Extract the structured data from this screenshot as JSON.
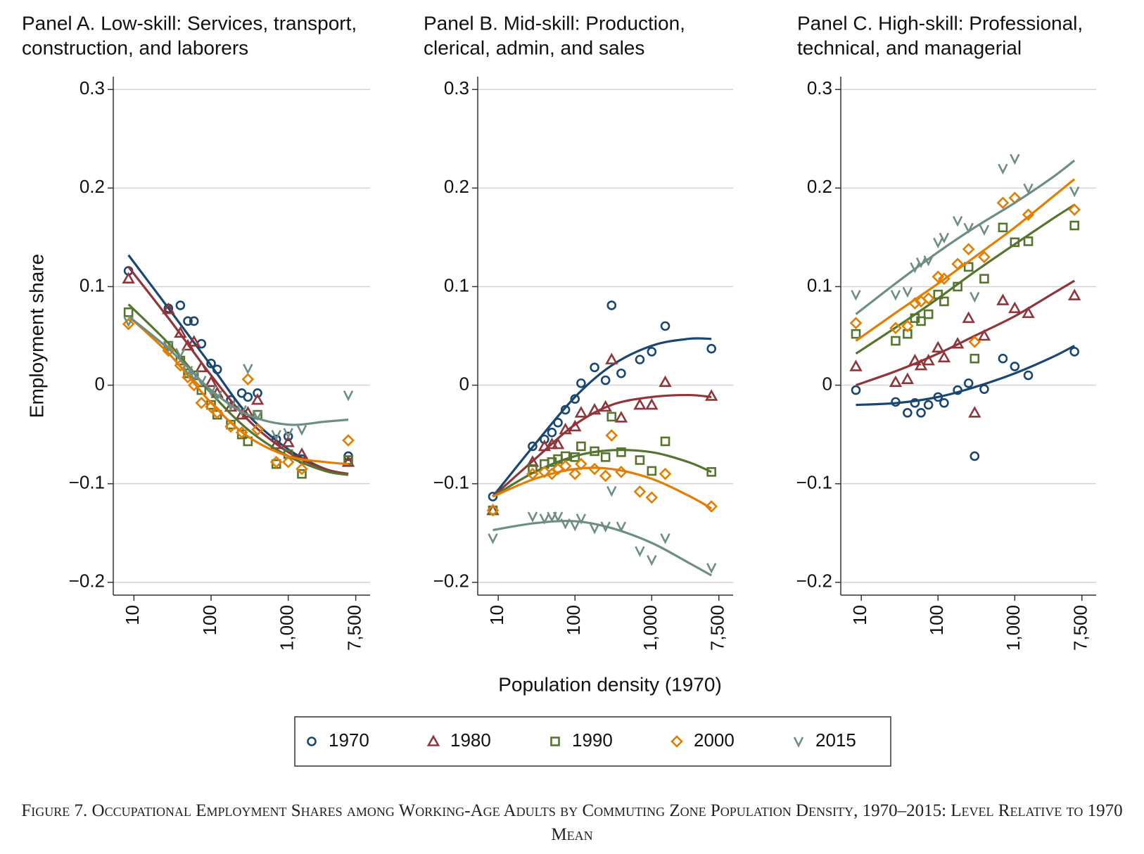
{
  "chart_data": [
    {
      "type": "scatter",
      "title": [
        "Panel A. Low-skill: Services, transport,",
        "construction, and laborers"
      ],
      "ylabel": "Employment share",
      "xscale": "log",
      "xlim": [
        5.4,
        11500
      ],
      "ylim": [
        -0.213,
        0.313
      ],
      "grid": true,
      "xticks": [
        10,
        100,
        {
          "value": 1000,
          "label": "1,000"
        },
        {
          "value": 7500,
          "label": "7,500"
        }
      ],
      "yticks": [
        {
          "value": -0.2,
          "label": "−0.2"
        },
        {
          "value": -0.1,
          "label": "−0.1"
        },
        0,
        0.1,
        0.2,
        0.3
      ],
      "x": [
        8.5,
        28,
        40,
        50,
        60,
        75,
        100,
        120,
        180,
        250,
        300,
        400,
        700,
        1000,
        1500,
        6000
      ],
      "fit_x": [
        8.5,
        30,
        100,
        300,
        1000,
        3000,
        6000
      ],
      "series": [
        {
          "name": "1970",
          "color": "#1a476f",
          "marker": "circle",
          "values": [
            0.116,
            0.078,
            0.081,
            0.065,
            0.065,
            0.042,
            0.022,
            0.016,
            -0.015,
            -0.008,
            -0.012,
            -0.008,
            -0.055,
            -0.052,
            -0.075,
            -0.072
          ],
          "fit": [
            0.132,
            0.075,
            0.02,
            -0.03,
            -0.065,
            -0.085,
            -0.09
          ]
        },
        {
          "name": "1980",
          "color": "#90353b",
          "marker": "triangle",
          "values": [
            0.108,
            0.077,
            0.053,
            0.04,
            0.044,
            0.018,
            0.003,
            -0.008,
            -0.022,
            -0.03,
            -0.028,
            -0.015,
            -0.06,
            -0.058,
            -0.07,
            -0.078
          ],
          "fit": [
            0.12,
            0.065,
            0.01,
            -0.035,
            -0.068,
            -0.085,
            -0.09
          ]
        },
        {
          "name": "1990",
          "color": "#55752f",
          "marker": "square",
          "values": [
            0.074,
            0.04,
            0.025,
            0.012,
            0.01,
            -0.005,
            -0.02,
            -0.03,
            -0.04,
            -0.05,
            -0.057,
            -0.03,
            -0.08,
            -0.07,
            -0.09,
            -0.076
          ],
          "fit": [
            0.082,
            0.04,
            -0.008,
            -0.045,
            -0.072,
            -0.087,
            -0.091
          ]
        },
        {
          "name": "2000",
          "color": "#e37e00",
          "marker": "diamond",
          "values": [
            0.062,
            0.035,
            0.02,
            0.008,
            0.0,
            -0.018,
            -0.022,
            -0.028,
            -0.042,
            -0.048,
            0.006,
            -0.045,
            -0.078,
            -0.078,
            -0.085,
            -0.056
          ],
          "fit": [
            0.07,
            0.03,
            -0.018,
            -0.052,
            -0.072,
            -0.078,
            -0.08
          ]
        },
        {
          "name": "2015",
          "color": "#6e8e84",
          "marker": "vee",
          "values": [
            0.065,
            0.04,
            0.033,
            0.015,
            0.01,
            0.005,
            -0.005,
            -0.01,
            -0.02,
            -0.025,
            0.017,
            -0.03,
            -0.05,
            -0.048,
            -0.045,
            -0.01
          ],
          "fit": [
            0.07,
            0.035,
            -0.005,
            -0.03,
            -0.04,
            -0.037,
            -0.035
          ]
        }
      ]
    },
    {
      "type": "scatter",
      "title": [
        "Panel B. Mid-skill: Production,",
        "clerical, admin, and sales"
      ],
      "xlabel": "Population density (1970)",
      "xscale": "log",
      "xlim": [
        5.4,
        11500
      ],
      "ylim": [
        -0.213,
        0.313
      ],
      "grid": true,
      "xticks": [
        10,
        100,
        {
          "value": 1000,
          "label": "1,000"
        },
        {
          "value": 7500,
          "label": "7,500"
        }
      ],
      "yticks": [
        {
          "value": -0.2,
          "label": "−0.2"
        },
        {
          "value": -0.1,
          "label": "−0.1"
        },
        0,
        0.1,
        0.2,
        0.3
      ],
      "x": [
        8.5,
        28,
        40,
        50,
        60,
        75,
        100,
        120,
        180,
        250,
        300,
        400,
        700,
        1000,
        1500,
        6000
      ],
      "fit_x": [
        8.5,
        30,
        100,
        300,
        1000,
        3000,
        6000
      ],
      "series": [
        {
          "color": "#1a476f",
          "marker": "circle",
          "values": [
            -0.113,
            -0.062,
            -0.055,
            -0.048,
            -0.038,
            -0.025,
            -0.014,
            0.002,
            0.018,
            0.005,
            0.081,
            0.012,
            0.026,
            0.034,
            0.06,
            0.037
          ],
          "fit": [
            -0.113,
            -0.06,
            -0.012,
            0.02,
            0.04,
            0.047,
            0.047
          ]
        },
        {
          "color": "#90353b",
          "marker": "triangle",
          "values": [
            -0.127,
            -0.078,
            -0.062,
            -0.06,
            -0.06,
            -0.045,
            -0.042,
            -0.028,
            -0.025,
            -0.022,
            0.026,
            -0.033,
            -0.02,
            -0.02,
            0.003,
            -0.011
          ],
          "fit": [
            -0.113,
            -0.075,
            -0.04,
            -0.02,
            -0.012,
            -0.01,
            -0.012
          ]
        },
        {
          "color": "#55752f",
          "marker": "square",
          "values": [
            -0.127,
            -0.085,
            -0.08,
            -0.078,
            -0.075,
            -0.072,
            -0.073,
            -0.062,
            -0.067,
            -0.073,
            -0.032,
            -0.068,
            -0.076,
            -0.087,
            -0.057,
            -0.088
          ],
          "fit": [
            -0.113,
            -0.088,
            -0.072,
            -0.066,
            -0.068,
            -0.078,
            -0.088
          ]
        },
        {
          "color": "#e37e00",
          "marker": "diamond",
          "values": [
            -0.127,
            -0.09,
            -0.088,
            -0.09,
            -0.085,
            -0.082,
            -0.09,
            -0.08,
            -0.085,
            -0.092,
            -0.051,
            -0.088,
            -0.108,
            -0.114,
            -0.09,
            -0.123
          ],
          "fit": [
            -0.113,
            -0.095,
            -0.085,
            -0.085,
            -0.095,
            -0.112,
            -0.125
          ]
        },
        {
          "color": "#6e8e84",
          "marker": "vee",
          "values": [
            -0.155,
            -0.133,
            -0.135,
            -0.133,
            -0.133,
            -0.14,
            -0.142,
            -0.135,
            -0.145,
            -0.143,
            -0.107,
            -0.143,
            -0.168,
            -0.177,
            -0.155,
            -0.185
          ],
          "fit": [
            -0.147,
            -0.14,
            -0.138,
            -0.145,
            -0.16,
            -0.18,
            -0.193
          ]
        }
      ]
    },
    {
      "type": "scatter",
      "title": [
        "Panel C. High-skill: Professional,",
        "technical, and managerial"
      ],
      "xscale": "log",
      "xlim": [
        5.4,
        11500
      ],
      "ylim": [
        -0.213,
        0.313
      ],
      "grid": true,
      "xticks": [
        10,
        100,
        {
          "value": 1000,
          "label": "1,000"
        },
        {
          "value": 7500,
          "label": "7,500"
        }
      ],
      "yticks": [
        {
          "value": -0.2,
          "label": "−0.2"
        },
        {
          "value": -0.1,
          "label": "−0.1"
        },
        0,
        0.1,
        0.2,
        0.3
      ],
      "x": [
        8.5,
        28,
        40,
        50,
        60,
        75,
        100,
        120,
        180,
        250,
        300,
        400,
        700,
        1000,
        1500,
        6000
      ],
      "fit_x": [
        8.5,
        30,
        100,
        300,
        1000,
        3000,
        6000
      ],
      "series": [
        {
          "color": "#1a476f",
          "marker": "circle",
          "values": [
            -0.005,
            -0.017,
            -0.028,
            -0.018,
            -0.028,
            -0.02,
            -0.012,
            -0.018,
            -0.005,
            0.002,
            -0.072,
            -0.004,
            0.027,
            0.019,
            0.01,
            0.034
          ],
          "fit": [
            -0.02,
            -0.018,
            -0.012,
            -0.002,
            0.012,
            0.028,
            0.04
          ]
        },
        {
          "color": "#90353b",
          "marker": "triangle",
          "values": [
            0.019,
            0.003,
            0.006,
            0.025,
            0.02,
            0.025,
            0.038,
            0.028,
            0.042,
            0.068,
            -0.028,
            0.05,
            0.086,
            0.078,
            0.073,
            0.091
          ],
          "fit": [
            0.0,
            0.015,
            0.032,
            0.05,
            0.07,
            0.092,
            0.106
          ]
        },
        {
          "color": "#55752f",
          "marker": "square",
          "values": [
            0.052,
            0.045,
            0.052,
            0.068,
            0.065,
            0.072,
            0.092,
            0.085,
            0.1,
            0.12,
            0.027,
            0.108,
            0.16,
            0.145,
            0.146,
            0.162
          ],
          "fit": [
            0.032,
            0.06,
            0.088,
            0.115,
            0.143,
            0.168,
            0.183
          ]
        },
        {
          "color": "#e37e00",
          "marker": "diamond",
          "values": [
            0.063,
            0.058,
            0.06,
            0.083,
            0.085,
            0.088,
            0.11,
            0.108,
            0.123,
            0.138,
            0.044,
            0.13,
            0.185,
            0.19,
            0.173,
            0.178
          ],
          "fit": [
            0.045,
            0.075,
            0.103,
            0.13,
            0.16,
            0.19,
            0.209
          ]
        },
        {
          "color": "#6e8e84",
          "marker": "vee",
          "values": [
            0.092,
            0.092,
            0.095,
            0.12,
            0.125,
            0.127,
            0.145,
            0.15,
            0.167,
            0.16,
            0.09,
            0.158,
            0.22,
            0.23,
            0.2,
            0.197
          ],
          "fit": [
            0.072,
            0.105,
            0.135,
            0.16,
            0.185,
            0.21,
            0.228
          ]
        }
      ]
    }
  ],
  "caption": "Figure 7. Occupational Employment Shares among Working-Age Adults by Commuting Zone Population Density, 1970–2015: Level Relative to 1970 Mean"
}
